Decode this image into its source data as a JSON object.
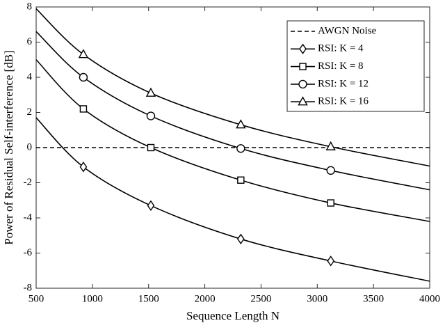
{
  "chart_data": {
    "type": "line",
    "xlabel": "Sequence Length N",
    "ylabel": "Power of Residual Self-interference [dB]",
    "x": [
      500,
      920,
      1520,
      2320,
      3120,
      4000
    ],
    "xlim": [
      500,
      4000
    ],
    "xticks": [
      500,
      1000,
      1500,
      2000,
      2500,
      3000,
      3500,
      4000
    ],
    "ylim": [
      -8,
      8
    ],
    "yticks": [
      -8,
      -6,
      -4,
      -2,
      0,
      2,
      4,
      6,
      8
    ],
    "grid": false,
    "legend": "upper right",
    "series": [
      {
        "name": "AWGN Noise",
        "color": "#000000",
        "dash": true,
        "marker": "none",
        "values": [
          0,
          0,
          0,
          0,
          0,
          0
        ]
      },
      {
        "name": "RSI: K = 4",
        "color": "#000000",
        "dash": false,
        "marker": "diamond",
        "values": [
          1.7,
          -1.1,
          -3.3,
          -5.2,
          -6.45,
          -7.6
        ]
      },
      {
        "name": "RSI: K = 8",
        "color": "#000000",
        "dash": false,
        "marker": "square",
        "values": [
          5.0,
          2.2,
          0,
          -1.85,
          -3.15,
          -4.2
        ]
      },
      {
        "name": "RSI: K = 12",
        "color": "#000000",
        "dash": false,
        "marker": "circle",
        "values": [
          6.6,
          4.0,
          1.8,
          -0.05,
          -1.3,
          -2.4
        ]
      },
      {
        "name": "RSI: K = 16",
        "color": "#000000",
        "dash": false,
        "marker": "triangle",
        "values": [
          7.9,
          5.3,
          3.1,
          1.3,
          0.05,
          -1.05
        ]
      }
    ]
  }
}
